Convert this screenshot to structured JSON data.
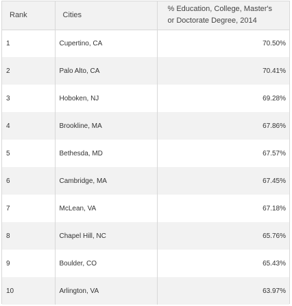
{
  "table": {
    "headers": {
      "rank": "Rank",
      "city": "Cities",
      "pct_line1": "% Education, College, Master's",
      "pct_line2": "or Doctorate Degree, 2014"
    },
    "rows": [
      {
        "rank": "1",
        "city": "Cupertino, CA",
        "pct": "70.50%"
      },
      {
        "rank": "2",
        "city": "Palo Alto, CA",
        "pct": "70.41%"
      },
      {
        "rank": "3",
        "city": "Hoboken, NJ",
        "pct": "69.28%"
      },
      {
        "rank": "4",
        "city": "Brookline, MA",
        "pct": "67.86%"
      },
      {
        "rank": "5",
        "city": "Bethesda, MD",
        "pct": "67.57%"
      },
      {
        "rank": "6",
        "city": "Cambridge, MA",
        "pct": "67.45%"
      },
      {
        "rank": "7",
        "city": "McLean, VA",
        "pct": "67.18%"
      },
      {
        "rank": "8",
        "city": "Chapel Hill, NC",
        "pct": "65.76%"
      },
      {
        "rank": "9",
        "city": "Boulder, CO",
        "pct": "65.43%"
      },
      {
        "rank": "10",
        "city": "Arlington, VA",
        "pct": "63.97%"
      }
    ]
  },
  "colors": {
    "header_bg": "#f2f2f2",
    "stripe_bg": "#f2f2f2",
    "border": "#d8d8d8",
    "text": "#333333"
  }
}
